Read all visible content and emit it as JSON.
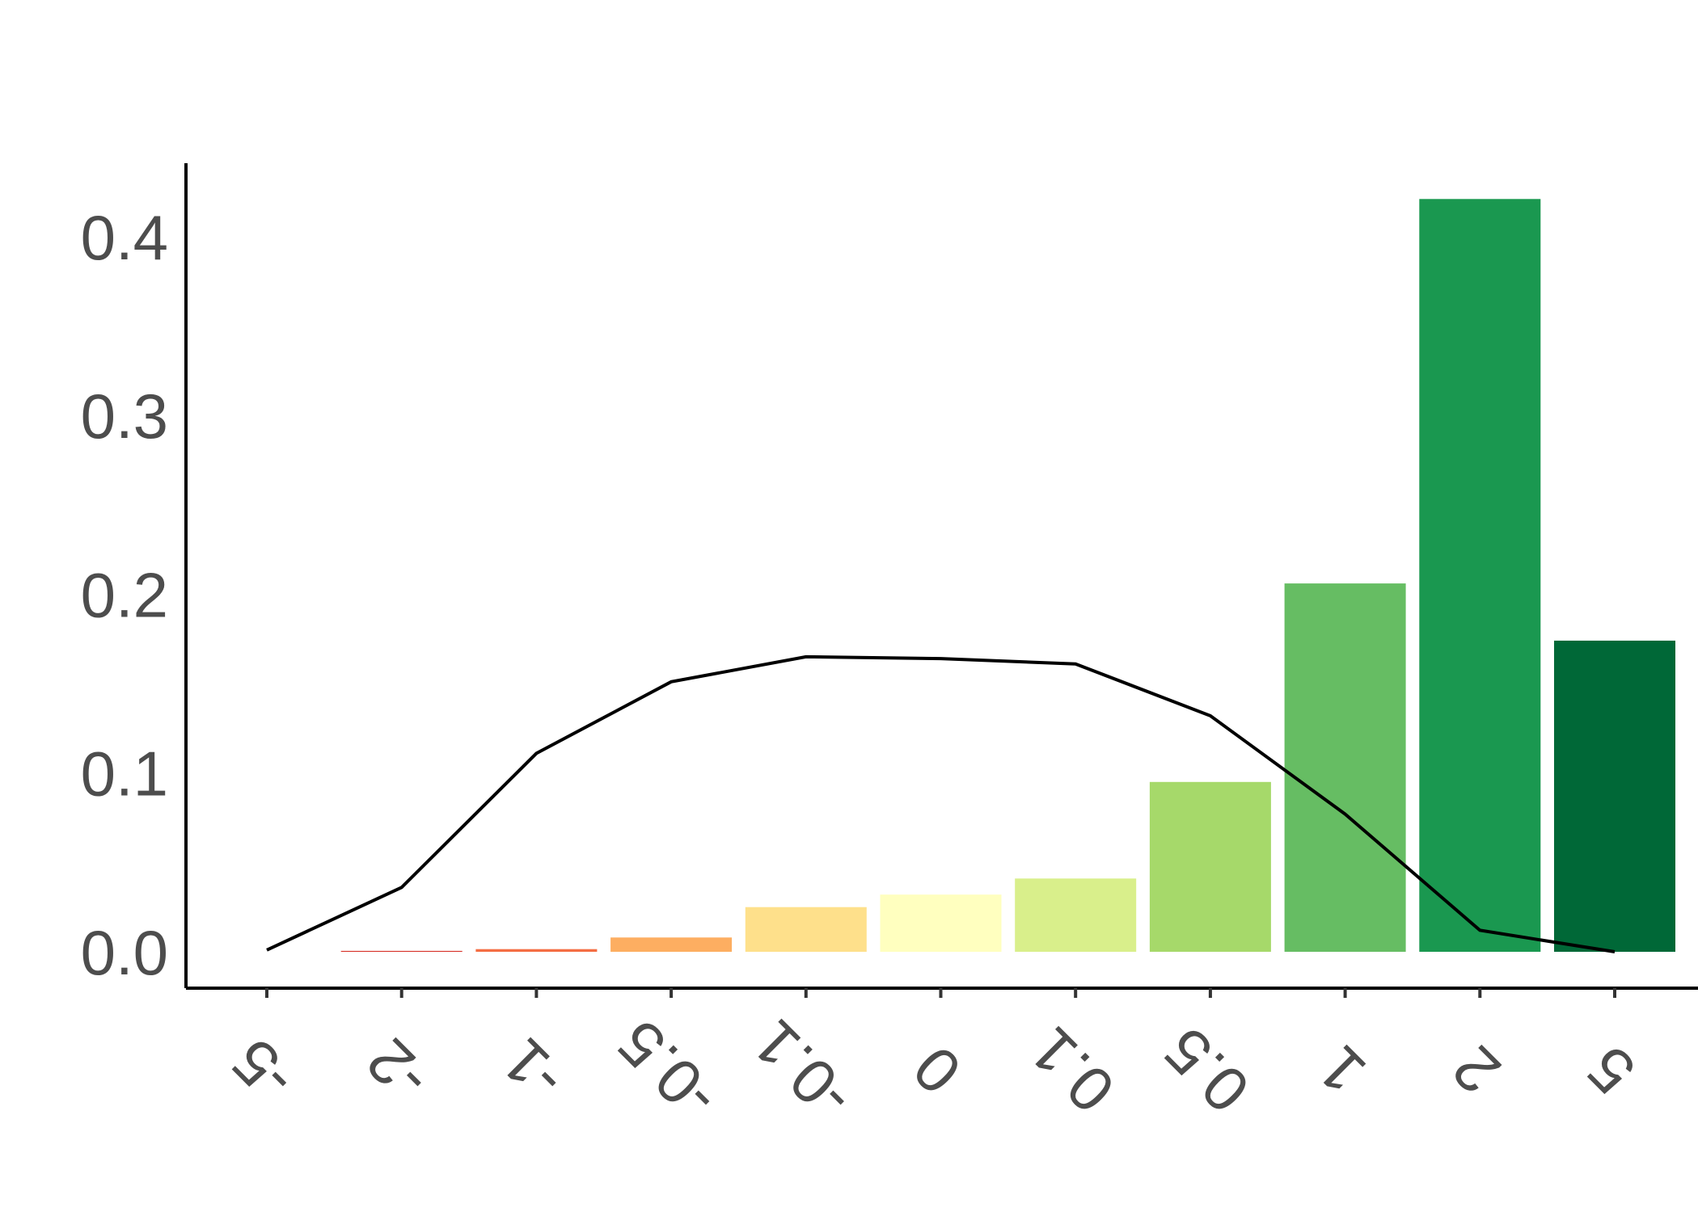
{
  "chart_data": {
    "type": "bar",
    "title": "",
    "xlabel": "",
    "ylabel": "",
    "categories": [
      "-5",
      "-2",
      "-1",
      "-0.5",
      "-0.1",
      "0",
      "0.1",
      "0.5",
      "1",
      "2",
      "5"
    ],
    "ylim": [
      0,
      0.43
    ],
    "yticks": [
      "0.0",
      "0.1",
      "0.2",
      "0.3",
      "0.4"
    ],
    "ytick_values": [
      0.0,
      0.1,
      0.2,
      0.3,
      0.4
    ],
    "grid": false,
    "legend": "none",
    "bars": {
      "values": [
        0.0,
        0.0005,
        0.0015,
        0.008,
        0.025,
        0.032,
        0.041,
        0.095,
        0.206,
        0.421,
        0.174
      ],
      "colors": [
        "#a50026",
        "#d73027",
        "#f46d43",
        "#fdae61",
        "#fee08b",
        "#ffffbf",
        "#d9ef8b",
        "#a6d96a",
        "#66bd63",
        "#1a9850",
        "#006837"
      ]
    },
    "line": {
      "values": [
        0.001,
        0.036,
        0.111,
        0.151,
        0.165,
        0.164,
        0.161,
        0.132,
        0.077,
        0.012,
        0.0
      ],
      "color": "#000000"
    }
  }
}
